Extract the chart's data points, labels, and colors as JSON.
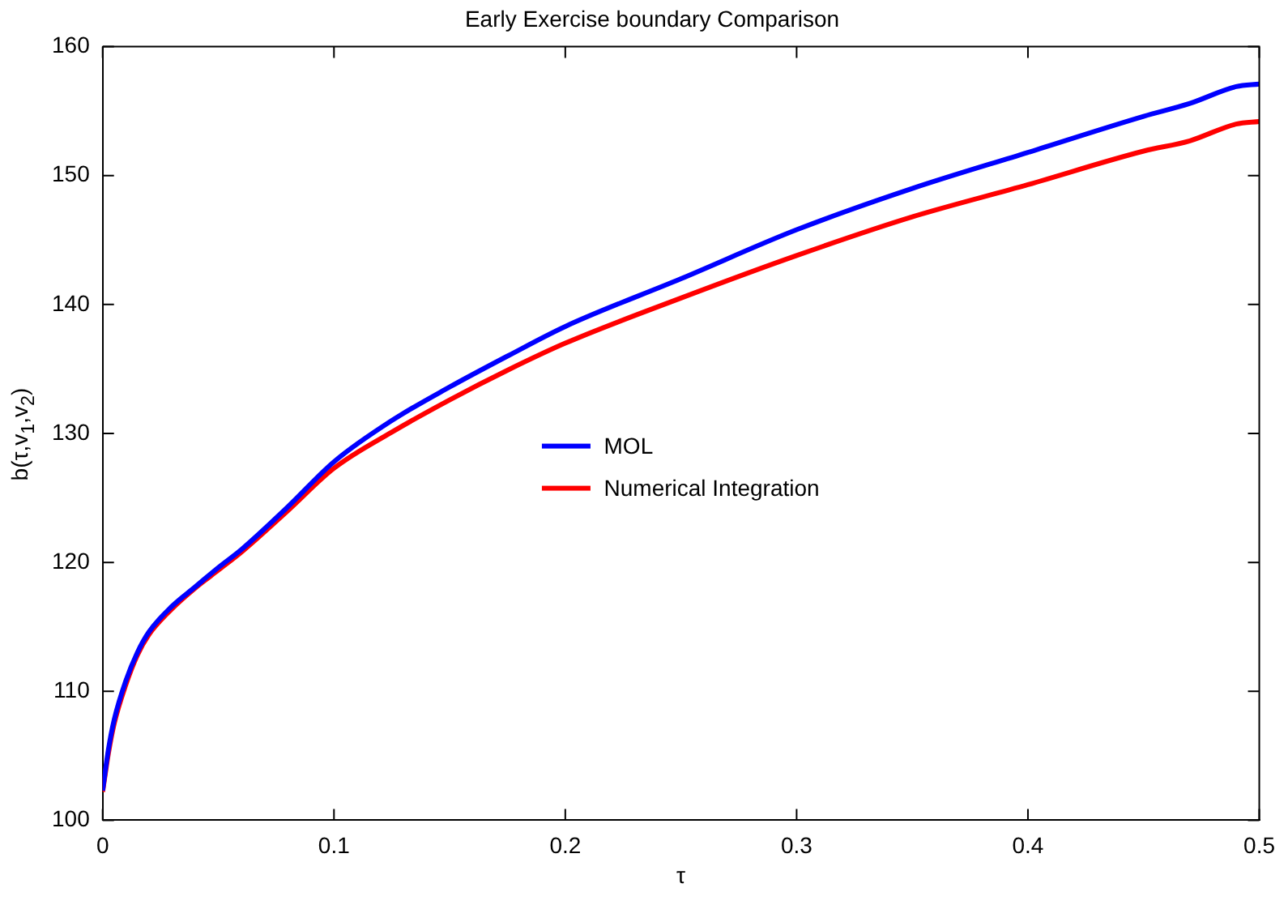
{
  "chart_data": {
    "type": "line",
    "title": "Early Exercise boundary Comparison",
    "xlabel": "τ",
    "ylabel": "b(τ,v$_{1}$,v$_{2}$)",
    "x": [
      0,
      0.0025,
      0.005,
      0.01,
      0.015,
      0.02,
      0.03,
      0.04,
      0.05,
      0.06,
      0.08,
      0.1,
      0.125,
      0.15,
      0.175,
      0.2,
      0.25,
      0.3,
      0.35,
      0.4,
      0.45,
      0.47,
      0.49,
      0.5
    ],
    "series": [
      {
        "name": "MOL",
        "color": "#0000ff",
        "values": [
          102.3,
          105.5,
          107.8,
          110.8,
          113,
          114.6,
          116.6,
          118.1,
          119.6,
          121,
          124.3,
          127.8,
          131,
          133.6,
          136,
          138.3,
          142,
          145.8,
          149,
          151.8,
          154.6,
          155.6,
          156.9,
          157.1
        ]
      },
      {
        "name": "Numerical Integration",
        "color": "#ff0000",
        "values": [
          102.2,
          105.2,
          107.5,
          110.5,
          112.8,
          114.4,
          116.4,
          118,
          119.4,
          120.8,
          124,
          127.3,
          130.1,
          132.6,
          134.9,
          137,
          140.5,
          143.8,
          146.8,
          149.3,
          151.9,
          152.7,
          154,
          154.2
        ]
      }
    ],
    "xlim": [
      0,
      0.5
    ],
    "xticks": [
      0,
      0.1,
      0.2,
      0.3,
      0.4,
      0.5
    ],
    "ylim": [
      100,
      160
    ],
    "yticks": [
      100,
      110,
      120,
      130,
      140,
      150,
      160
    ],
    "grid": false,
    "legend": "center",
    "marker": "none",
    "line_style": "solid"
  }
}
